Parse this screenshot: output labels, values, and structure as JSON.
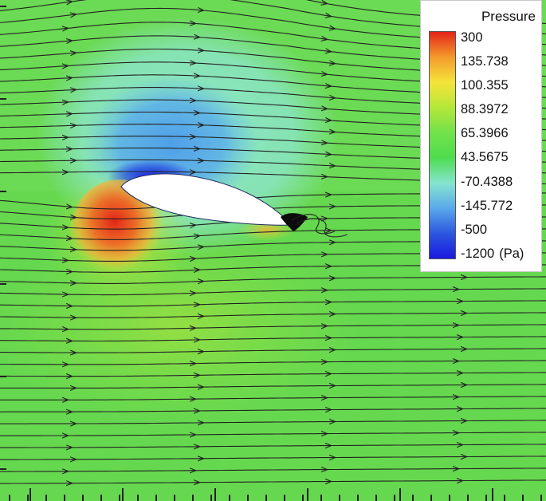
{
  "legend": {
    "title": "Pressure",
    "unit": "(Pa)",
    "levels": [
      "300",
      "135.738",
      "100.355",
      "88.3972",
      "65.3966",
      "43.5675",
      "-70.4388",
      "-145.772",
      "-500",
      "-1200"
    ],
    "colors": [
      "#e32418",
      "#f49a2c",
      "#f5e43a",
      "#b5e63a",
      "#72e24a",
      "#4fdc4f",
      "#86e5cf",
      "#5aa9ea",
      "#2c57e0",
      "#1a1adf"
    ]
  },
  "field": {
    "background_color": "#66d84f",
    "airfoil_color": "#ffffff",
    "streamline_color": "#222222"
  }
}
